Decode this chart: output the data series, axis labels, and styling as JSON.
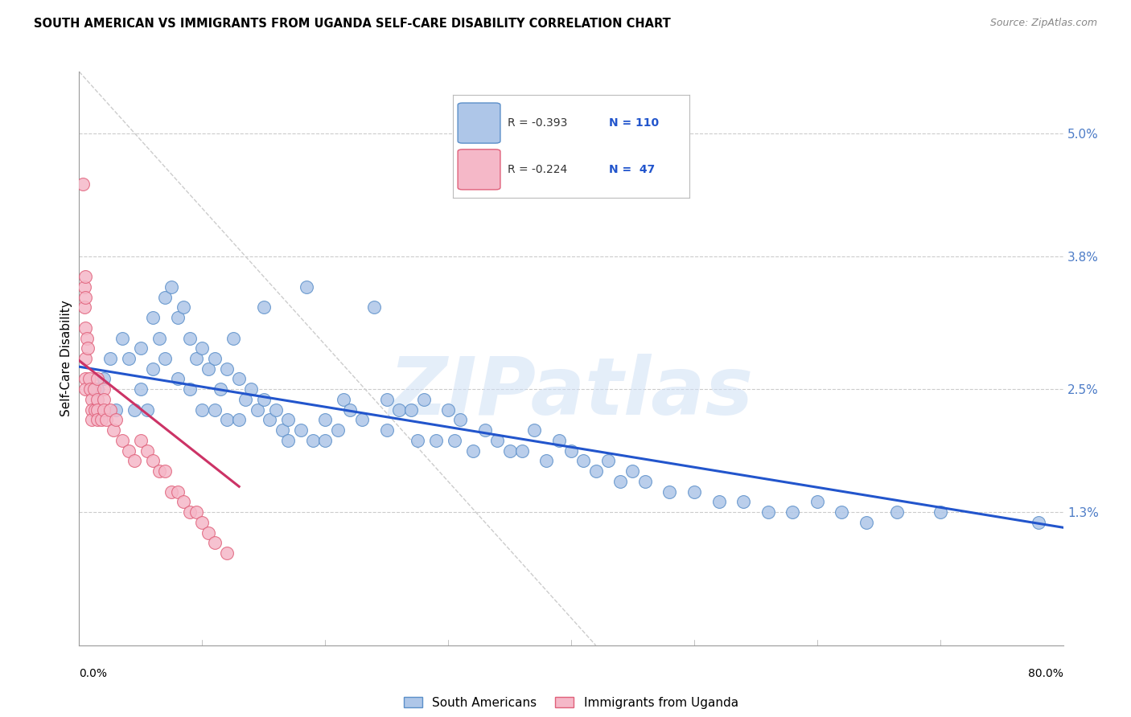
{
  "title": "SOUTH AMERICAN VS IMMIGRANTS FROM UGANDA SELF-CARE DISABILITY CORRELATION CHART",
  "source": "Source: ZipAtlas.com",
  "ylabel": "Self-Care Disability",
  "right_ytick_vals": [
    1.3,
    2.5,
    3.8,
    5.0
  ],
  "right_ytick_labels": [
    "1.3%",
    "2.5%",
    "3.8%",
    "5.0%"
  ],
  "xlim": [
    0.0,
    80.0
  ],
  "ylim": [
    0.0,
    5.6
  ],
  "plot_ymax": 5.6,
  "watermark": "ZIPatlas",
  "series1_color": "#aec6e8",
  "series1_edge": "#5b8fc9",
  "series2_color": "#f5b8c8",
  "series2_edge": "#e0607a",
  "line1_color": "#2255cc",
  "line2_color": "#cc3366",
  "diag_color": "#cccccc",
  "grid_color": "#cccccc",
  "blue_label": "South Americans",
  "pink_label": "Immigrants from Uganda",
  "sa_x": [
    1.5,
    2.0,
    2.5,
    3.0,
    3.5,
    4.0,
    4.5,
    5.0,
    5.0,
    5.5,
    6.0,
    6.0,
    6.5,
    7.0,
    7.0,
    7.5,
    8.0,
    8.0,
    8.5,
    9.0,
    9.0,
    9.5,
    10.0,
    10.0,
    10.5,
    11.0,
    11.0,
    11.5,
    12.0,
    12.0,
    12.5,
    13.0,
    13.0,
    13.5,
    14.0,
    14.5,
    15.0,
    15.0,
    15.5,
    16.0,
    16.5,
    17.0,
    17.0,
    18.0,
    18.5,
    19.0,
    20.0,
    20.0,
    21.0,
    21.5,
    22.0,
    23.0,
    24.0,
    25.0,
    25.0,
    26.0,
    27.0,
    27.5,
    28.0,
    29.0,
    30.0,
    30.5,
    31.0,
    32.0,
    33.0,
    34.0,
    35.0,
    36.0,
    37.0,
    38.0,
    39.0,
    40.0,
    41.0,
    42.0,
    43.0,
    44.0,
    45.0,
    46.0,
    48.0,
    50.0,
    52.0,
    54.0,
    56.0,
    58.0,
    60.0,
    62.0,
    64.0,
    66.5,
    70.0,
    78.0
  ],
  "sa_y": [
    2.5,
    2.6,
    2.8,
    2.3,
    3.0,
    2.8,
    2.3,
    2.9,
    2.5,
    2.3,
    3.2,
    2.7,
    3.0,
    3.4,
    2.8,
    3.5,
    3.2,
    2.6,
    3.3,
    3.0,
    2.5,
    2.8,
    2.9,
    2.3,
    2.7,
    2.8,
    2.3,
    2.5,
    2.7,
    2.2,
    3.0,
    2.6,
    2.2,
    2.4,
    2.5,
    2.3,
    3.3,
    2.4,
    2.2,
    2.3,
    2.1,
    2.2,
    2.0,
    2.1,
    3.5,
    2.0,
    2.2,
    2.0,
    2.1,
    2.4,
    2.3,
    2.2,
    3.3,
    2.4,
    2.1,
    2.3,
    2.3,
    2.0,
    2.4,
    2.0,
    2.3,
    2.0,
    2.2,
    1.9,
    2.1,
    2.0,
    1.9,
    1.9,
    2.1,
    1.8,
    2.0,
    1.9,
    1.8,
    1.7,
    1.8,
    1.6,
    1.7,
    1.6,
    1.5,
    1.5,
    1.4,
    1.4,
    1.3,
    1.3,
    1.4,
    1.3,
    1.2,
    1.3,
    1.3,
    1.2
  ],
  "ug_x": [
    0.3,
    0.4,
    0.4,
    0.5,
    0.5,
    0.5,
    0.5,
    0.5,
    0.5,
    0.6,
    0.7,
    0.8,
    0.9,
    1.0,
    1.0,
    1.0,
    1.2,
    1.3,
    1.5,
    1.5,
    1.5,
    1.5,
    1.8,
    2.0,
    2.0,
    2.0,
    2.2,
    2.5,
    2.8,
    3.0,
    3.5,
    4.0,
    4.5,
    5.0,
    5.5,
    6.0,
    6.5,
    7.0,
    7.5,
    8.0,
    8.5,
    9.0,
    9.5,
    10.0,
    10.5,
    11.0,
    12.0
  ],
  "ug_y": [
    4.5,
    3.5,
    3.3,
    3.6,
    3.4,
    3.1,
    2.8,
    2.6,
    2.5,
    3.0,
    2.9,
    2.6,
    2.5,
    2.4,
    2.3,
    2.2,
    2.5,
    2.3,
    2.6,
    2.4,
    2.3,
    2.2,
    2.2,
    2.5,
    2.4,
    2.3,
    2.2,
    2.3,
    2.1,
    2.2,
    2.0,
    1.9,
    1.8,
    2.0,
    1.9,
    1.8,
    1.7,
    1.7,
    1.5,
    1.5,
    1.4,
    1.3,
    1.3,
    1.2,
    1.1,
    1.0,
    0.9
  ],
  "sa_line_x": [
    0.0,
    80.0
  ],
  "sa_line_y": [
    2.72,
    1.15
  ],
  "ug_line_x": [
    0.0,
    13.0
  ],
  "ug_line_y": [
    2.78,
    1.55
  ],
  "diag_line_x": [
    0.0,
    42.0
  ],
  "diag_line_y": [
    5.6,
    0.0
  ]
}
